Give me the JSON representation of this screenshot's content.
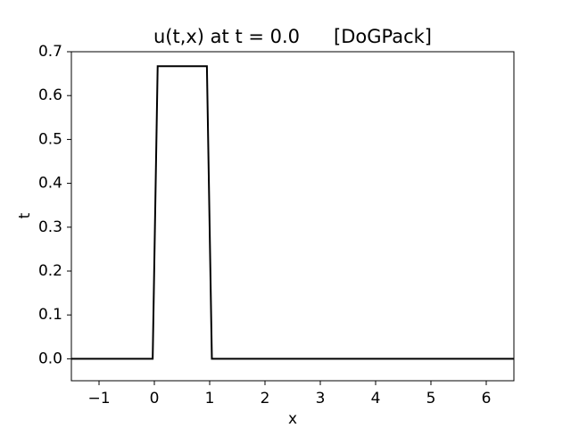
{
  "chart_data": {
    "type": "line",
    "title": "u(t,x) at t = 0.0",
    "title_suffix": "[DoGPack]",
    "xlabel": "x",
    "ylabel": "t",
    "xlim": [
      -1.5,
      6.5
    ],
    "ylim": [
      -0.05,
      0.7
    ],
    "grid": false,
    "legend": "none",
    "xticks": [
      -1,
      0,
      1,
      2,
      3,
      4,
      5,
      6
    ],
    "xtick_labels": [
      "−1",
      "0",
      "1",
      "2",
      "3",
      "4",
      "5",
      "6"
    ],
    "yticks": [
      0.0,
      0.1,
      0.2,
      0.3,
      0.4,
      0.5,
      0.6,
      0.7
    ],
    "ytick_labels": [
      "0.0",
      "0.1",
      "0.2",
      "0.3",
      "0.4",
      "0.5",
      "0.6",
      "0.7"
    ],
    "series": [
      {
        "color": "#000000",
        "x": [
          -1.5,
          -0.03,
          0.06,
          0.95,
          1.04,
          6.5
        ],
        "y": [
          0.0,
          0.0,
          0.667,
          0.667,
          0.0,
          0.0
        ]
      }
    ]
  }
}
